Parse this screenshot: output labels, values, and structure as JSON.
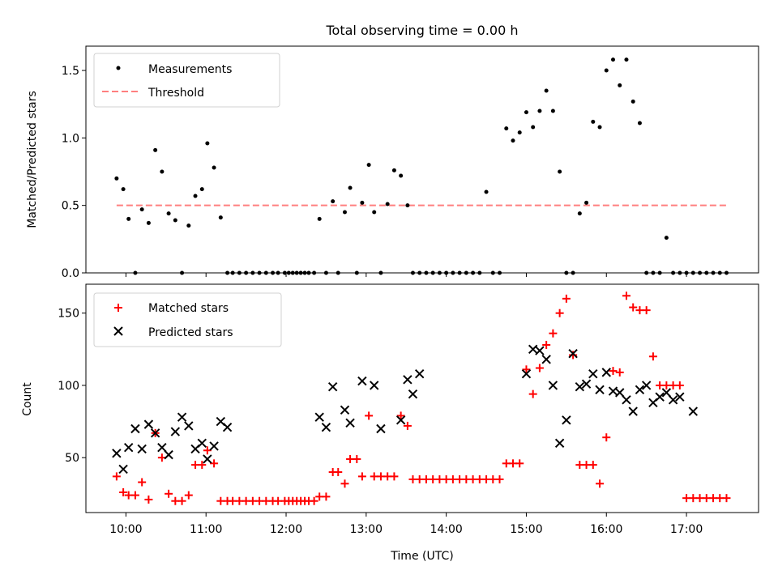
{
  "figure": {
    "title": "Total observing time = 0.00 h",
    "xlabel": "Time (UTC)"
  },
  "colors": {
    "measurement": "#000000",
    "threshold": "#ff7f7f",
    "matched": "#ff0000",
    "predicted": "#000000"
  },
  "chart_data": [
    {
      "type": "scatter",
      "ylabel": "Matched/Predicted stars",
      "xlim": [
        "09:30",
        "17:54"
      ],
      "ylim": [
        0,
        1.68
      ],
      "yticks": [
        0.0,
        0.5,
        1.0,
        1.5
      ],
      "ytick_labels": [
        "0.0",
        "0.5",
        "1.0",
        "1.5"
      ],
      "xticks": [
        "10:00",
        "11:00",
        "12:00",
        "13:00",
        "14:00",
        "15:00",
        "16:00",
        "17:00"
      ],
      "legend": {
        "position": "upper-left",
        "entries": [
          "Measurements",
          "Threshold"
        ]
      },
      "threshold": {
        "name": "Threshold",
        "y": 0.5,
        "x": [
          "09:53",
          "17:30"
        ]
      },
      "series": [
        {
          "name": "Measurements",
          "marker": "dot",
          "x": [
            "09:53",
            "09:58",
            "10:02",
            "10:07",
            "10:12",
            "10:17",
            "10:22",
            "10:27",
            "10:32",
            "10:37",
            "10:42",
            "10:47",
            "10:52",
            "10:57",
            "11:01",
            "11:06",
            "11:11",
            "11:16",
            "11:20",
            "11:25",
            "11:30",
            "11:35",
            "11:40",
            "11:45",
            "11:50",
            "11:54",
            "11:59",
            "12:02",
            "12:05",
            "12:08",
            "12:11",
            "12:14",
            "12:17",
            "12:21",
            "12:25",
            "12:30",
            "12:35",
            "12:39",
            "12:44",
            "12:48",
            "12:53",
            "12:57",
            "13:02",
            "13:06",
            "13:11",
            "13:16",
            "13:21",
            "13:26",
            "13:31",
            "13:35",
            "13:40",
            "13:45",
            "13:50",
            "13:55",
            "14:00",
            "14:05",
            "14:10",
            "14:15",
            "14:20",
            "14:25",
            "14:30",
            "14:35",
            "14:40",
            "14:45",
            "14:50",
            "14:55",
            "15:00",
            "15:05",
            "15:10",
            "15:15",
            "15:20",
            "15:25",
            "15:30",
            "15:35",
            "15:40",
            "15:45",
            "15:50",
            "15:55",
            "16:00",
            "16:05",
            "16:10",
            "16:15",
            "16:20",
            "16:25",
            "16:30",
            "16:35",
            "16:40",
            "16:45",
            "16:50",
            "16:55",
            "17:00",
            "17:05",
            "17:10",
            "17:15",
            "17:20",
            "17:25",
            "17:30"
          ],
          "y": [
            0.7,
            0.62,
            0.4,
            0.0,
            0.47,
            0.37,
            0.91,
            0.75,
            0.44,
            0.39,
            0.0,
            0.35,
            0.57,
            0.62,
            0.96,
            0.78,
            0.41,
            0.0,
            0.0,
            0.0,
            0.0,
            0.0,
            0.0,
            0.0,
            0.0,
            0.0,
            0.0,
            0.0,
            0.0,
            0.0,
            0.0,
            0.0,
            0.0,
            0.0,
            0.4,
            0.0,
            0.53,
            0.0,
            0.45,
            0.63,
            0.0,
            0.52,
            0.8,
            0.45,
            0.0,
            0.51,
            0.76,
            0.72,
            0.5,
            0.0,
            0.0,
            0.0,
            0.0,
            0.0,
            0.0,
            0.0,
            0.0,
            0.0,
            0.0,
            0.0,
            0.6,
            0.0,
            0.0,
            1.07,
            0.98,
            1.04,
            1.19,
            1.08,
            1.2,
            1.35,
            1.2,
            0.75,
            0.0,
            0.0,
            0.44,
            0.52,
            1.12,
            1.08,
            1.5,
            1.58,
            1.39,
            1.58,
            1.27,
            1.11,
            0.0,
            0.0,
            0.0,
            0.26,
            0.0,
            0.0,
            0.0,
            0.0,
            0.0,
            0.0,
            0.0,
            0.0,
            0.0
          ]
        }
      ]
    },
    {
      "type": "scatter",
      "ylabel": "Count",
      "xlim": [
        "09:30",
        "17:54"
      ],
      "ylim": [
        12,
        170
      ],
      "yticks": [
        50,
        100,
        150
      ],
      "ytick_labels": [
        "50",
        "100",
        "150"
      ],
      "xticks": [
        "10:00",
        "11:00",
        "12:00",
        "13:00",
        "14:00",
        "15:00",
        "16:00",
        "17:00"
      ],
      "xtick_labels": [
        "10:00",
        "11:00",
        "12:00",
        "13:00",
        "14:00",
        "15:00",
        "16:00",
        "17:00"
      ],
      "legend": {
        "position": "upper-left",
        "entries": [
          "Matched stars",
          "Predicted stars"
        ]
      },
      "series": [
        {
          "name": "Matched stars",
          "marker": "plus",
          "x": [
            "09:53",
            "09:58",
            "10:02",
            "10:07",
            "10:12",
            "10:17",
            "10:22",
            "10:27",
            "10:32",
            "10:37",
            "10:42",
            "10:47",
            "10:52",
            "10:57",
            "11:01",
            "11:06",
            "11:11",
            "11:16",
            "11:20",
            "11:25",
            "11:30",
            "11:35",
            "11:40",
            "11:45",
            "11:50",
            "11:54",
            "11:59",
            "12:02",
            "12:05",
            "12:08",
            "12:11",
            "12:14",
            "12:17",
            "12:21",
            "12:25",
            "12:30",
            "12:35",
            "12:39",
            "12:44",
            "12:48",
            "12:53",
            "12:57",
            "13:02",
            "13:06",
            "13:11",
            "13:16",
            "13:21",
            "13:26",
            "13:31",
            "13:35",
            "13:40",
            "13:45",
            "13:50",
            "13:55",
            "14:00",
            "14:05",
            "14:10",
            "14:15",
            "14:20",
            "14:25",
            "14:30",
            "14:35",
            "14:40",
            "14:45",
            "14:50",
            "14:55",
            "15:00",
            "15:05",
            "15:10",
            "15:15",
            "15:20",
            "15:25",
            "15:30",
            "15:35",
            "15:40",
            "15:45",
            "15:50",
            "15:55",
            "16:00",
            "16:05",
            "16:10",
            "16:15",
            "16:20",
            "16:25",
            "16:30",
            "16:35",
            "16:40",
            "16:45",
            "16:50",
            "16:55",
            "17:00",
            "17:05",
            "17:10",
            "17:15",
            "17:20",
            "17:25",
            "17:30"
          ],
          "y": [
            37,
            26,
            24,
            24,
            33,
            21,
            67,
            50,
            25,
            20,
            20,
            24,
            45,
            45,
            55,
            46,
            20,
            20,
            20,
            20,
            20,
            20,
            20,
            20,
            20,
            20,
            20,
            20,
            20,
            20,
            20,
            20,
            20,
            20,
            23,
            23,
            40,
            40,
            32,
            49,
            49,
            37,
            79,
            37,
            37,
            37,
            37,
            79,
            72,
            35,
            35,
            35,
            35,
            35,
            35,
            35,
            35,
            35,
            35,
            35,
            35,
            35,
            35,
            46,
            46,
            46,
            111,
            94,
            112,
            128,
            136,
            150,
            160,
            121,
            45,
            45,
            45,
            32,
            64,
            110,
            109,
            162,
            154,
            152,
            152,
            120,
            100,
            100,
            100,
            100,
            22,
            22,
            22,
            22,
            22,
            22,
            22
          ]
        },
        {
          "name": "Predicted stars",
          "marker": "x",
          "x": [
            "09:53",
            "09:58",
            "10:02",
            "10:07",
            "10:12",
            "10:17",
            "10:22",
            "10:27",
            "10:32",
            "10:37",
            "10:42",
            "10:47",
            "10:52",
            "10:57",
            "11:01",
            "11:06",
            "11:11",
            "11:16",
            "12:25",
            "12:30",
            "12:35",
            "12:44",
            "12:48",
            "12:57",
            "13:06",
            "13:11",
            "13:26",
            "13:31",
            "13:35",
            "13:40",
            "15:00",
            "15:05",
            "15:10",
            "15:15",
            "15:20",
            "15:25",
            "15:30",
            "15:35",
            "15:40",
            "15:45",
            "15:50",
            "15:55",
            "16:00",
            "16:05",
            "16:10",
            "16:15",
            "16:20",
            "16:25",
            "16:30",
            "16:35",
            "16:40",
            "16:45",
            "16:50",
            "16:55",
            "17:05"
          ],
          "y": [
            53,
            42,
            57,
            70,
            56,
            73,
            67,
            57,
            52,
            68,
            78,
            72,
            56,
            60,
            49,
            58,
            75,
            71,
            78,
            71,
            99,
            83,
            74,
            103,
            100,
            70,
            76,
            104,
            94,
            108,
            108,
            125,
            124,
            118,
            100,
            60,
            76,
            122,
            99,
            101,
            108,
            97,
            109,
            96,
            95,
            90,
            82,
            97,
            100,
            88,
            92,
            95,
            90,
            92,
            82
          ]
        }
      ]
    }
  ]
}
